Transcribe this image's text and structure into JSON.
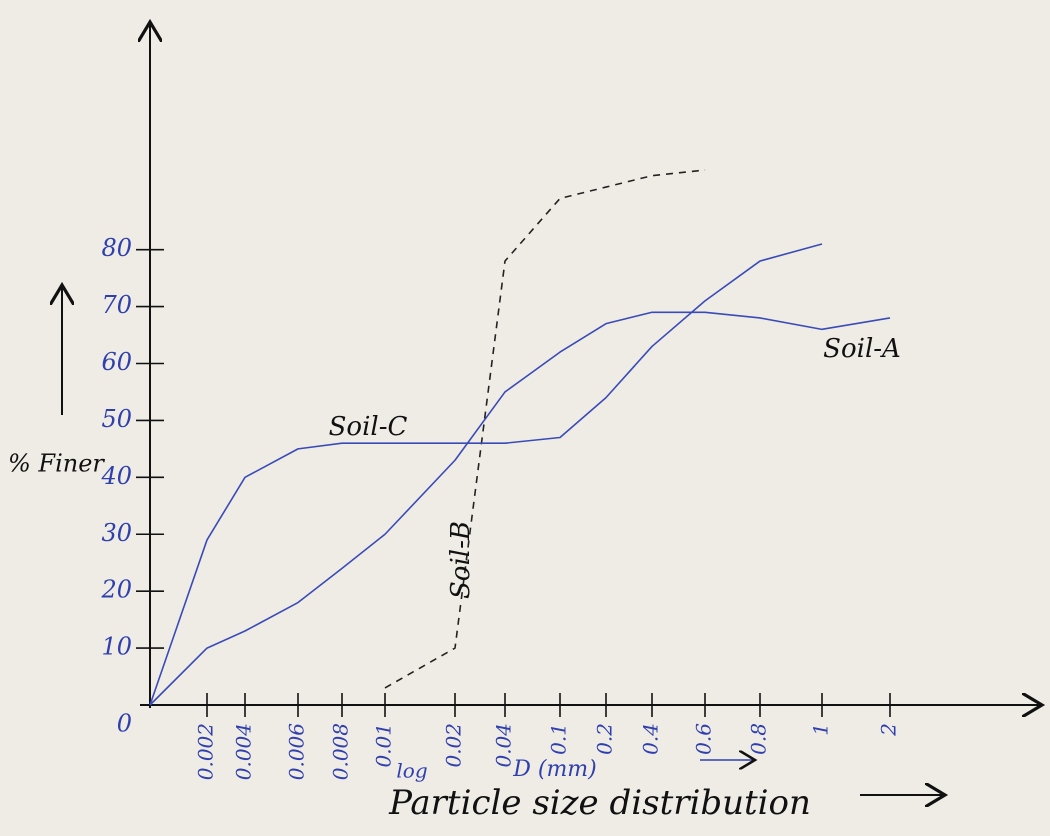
{
  "chart_data": {
    "type": "line",
    "title": "Particle size distribution",
    "x_axis_label": "D (mm)",
    "x_scale_note": "log",
    "y_axis_label": "% Finer",
    "categories": [
      null,
      "0.002",
      "0.004",
      "0.006",
      "0.008",
      "0.01",
      "0.02",
      "0.04",
      "0.1",
      "0.2",
      "0.4",
      "0.6",
      "0.8",
      "1",
      "2"
    ],
    "ylim": [
      0,
      120
    ],
    "yticks": [
      0,
      10,
      20,
      30,
      40,
      50,
      60,
      70,
      80
    ],
    "series": [
      {
        "name": "Soil-A",
        "color": "#3a4bb8",
        "dash": false,
        "values": [
          0,
          10,
          13,
          18,
          24,
          30,
          43,
          55,
          62,
          67,
          69,
          69,
          68,
          66,
          68
        ]
      },
      {
        "name": "Soil-B",
        "color": "#222222",
        "dash": true,
        "values": [
          null,
          null,
          null,
          null,
          null,
          3,
          10,
          78,
          89,
          91,
          93,
          94,
          null,
          null,
          null
        ]
      },
      {
        "name": "Soil-C",
        "color": "#3a4bb8",
        "dash": false,
        "values": [
          0,
          29,
          40,
          45,
          46,
          46,
          46,
          46,
          47,
          54,
          63,
          71,
          78,
          81,
          null
        ]
      }
    ]
  }
}
